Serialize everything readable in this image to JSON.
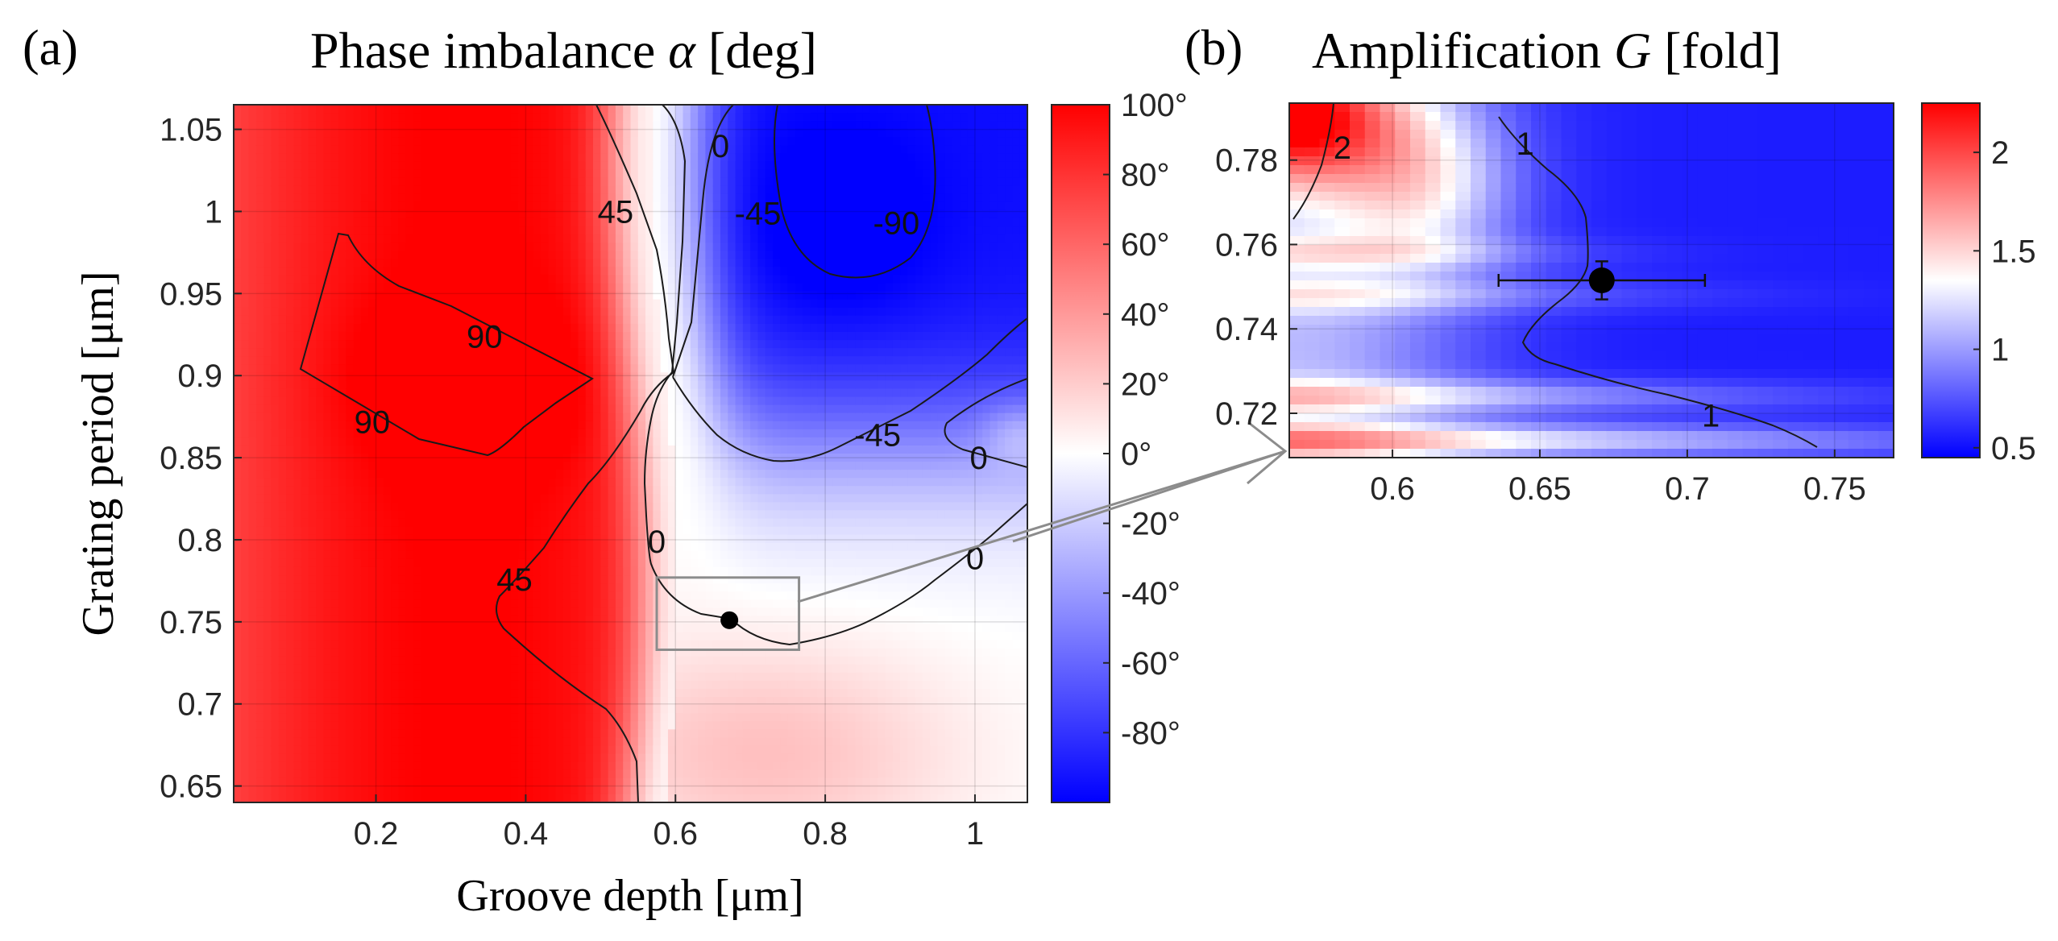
{
  "chart_data": [
    {
      "type": "heatmap",
      "panel_label": "(a)",
      "title_main": "Phase imbalance ",
      "title_symbol": "α",
      "title_unit": " [deg]",
      "xlabel": "Groove depth [μm]",
      "ylabel": "Grating period [μm]",
      "xlim": [
        0.01,
        1.07
      ],
      "ylim": [
        0.64,
        1.065
      ],
      "xticks": [
        0.2,
        0.4,
        0.6,
        0.8,
        1
      ],
      "xtick_labels": [
        "0.2",
        "0.4",
        "0.6",
        "0.8",
        "1"
      ],
      "yticks": [
        0.65,
        0.7,
        0.75,
        0.8,
        0.85,
        0.9,
        0.95,
        1,
        1.05
      ],
      "ytick_labels": [
        "0.65",
        "0.7",
        "0.75",
        "0.8",
        "0.85",
        "0.9",
        "0.95",
        "1",
        "1.05"
      ],
      "grid": true,
      "colorbar": {
        "range": [
          -100,
          100
        ],
        "ticks": [
          100,
          80,
          60,
          40,
          20,
          0,
          -20,
          -40,
          -60,
          -80
        ],
        "tick_labels": [
          "100°",
          "80°",
          "60°",
          "40°",
          "20°",
          "0°",
          "-20°",
          "-40°",
          "-60°",
          "-80°"
        ],
        "colormap": [
          "#0000ff",
          "#ffffff",
          "#ff0000"
        ]
      },
      "contour_labels": [
        {
          "text": "0",
          "x": 0.66,
          "y": 1.04
        },
        {
          "text": "45",
          "x": 0.52,
          "y": 1.0
        },
        {
          "text": "-45",
          "x": 0.71,
          "y": 0.999
        },
        {
          "text": "-90",
          "x": 0.895,
          "y": 0.993
        },
        {
          "text": "90",
          "x": 0.345,
          "y": 0.924
        },
        {
          "text": "90",
          "x": 0.195,
          "y": 0.872
        },
        {
          "text": "-45",
          "x": 0.87,
          "y": 0.864
        },
        {
          "text": "0",
          "x": 1.005,
          "y": 0.85
        },
        {
          "text": "0",
          "x": 0.575,
          "y": 0.799
        },
        {
          "text": "45",
          "x": 0.385,
          "y": 0.776
        },
        {
          "text": "0",
          "x": 1.0,
          "y": 0.789
        }
      ],
      "highlight_box": {
        "x": [
          0.575,
          0.765
        ],
        "y": [
          0.733,
          0.777
        ]
      },
      "marker": {
        "x": 0.672,
        "y": 0.751
      }
    },
    {
      "type": "heatmap",
      "panel_label": "(b)",
      "title_main": "Amplification ",
      "title_symbol": "G",
      "title_unit": " [fold]",
      "xlim": [
        0.565,
        0.77
      ],
      "ylim": [
        0.7095,
        0.7935
      ],
      "xticks": [
        0.6,
        0.65,
        0.7,
        0.75
      ],
      "xtick_labels": [
        "0.6",
        "0.65",
        "0.7",
        "0.75"
      ],
      "yticks": [
        0.72,
        0.74,
        0.76,
        0.78
      ],
      "ytick_labels": [
        "0.72",
        "0.74",
        "0.76",
        "0.78"
      ],
      "grid": true,
      "colorbar": {
        "range": [
          0.45,
          2.25
        ],
        "ticks": [
          2,
          1.5,
          1,
          0.5
        ],
        "tick_labels": [
          "2",
          "1.5",
          "1",
          "0.5"
        ],
        "colormap": [
          "#0000ff",
          "#ffffff",
          "#ff0000"
        ]
      },
      "contour_labels": [
        {
          "text": "2",
          "x": 0.583,
          "y": 0.783
        },
        {
          "text": "1",
          "x": 0.645,
          "y": 0.784
        },
        {
          "text": "1",
          "x": 0.708,
          "y": 0.7195
        }
      ],
      "data_point": {
        "x": 0.671,
        "y": 0.7515,
        "x_err": [
          0.636,
          0.706
        ],
        "y_err": [
          0.747,
          0.756
        ]
      }
    }
  ]
}
